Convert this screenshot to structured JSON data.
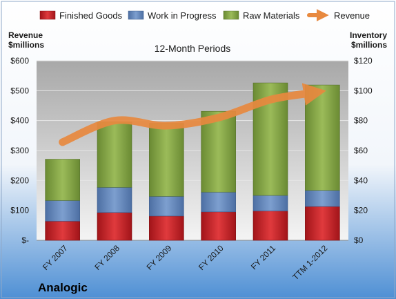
{
  "chart_data": {
    "type": "bar",
    "stacked": true,
    "subtitle": "12-Month Periods",
    "company": "Analogic",
    "categories": [
      "FY 2007",
      "FY 2008",
      "FY 2009",
      "FY 2010",
      "FY 2011",
      "TTM 1-2012"
    ],
    "left_axis": {
      "title_line1": "Revenue",
      "title_line2": "$millions",
      "range": [
        0,
        600
      ],
      "ticks": [
        0,
        100,
        200,
        300,
        400,
        500,
        600
      ],
      "tick_labels": [
        "$-",
        "$100",
        "$200",
        "$300",
        "$400",
        "$500",
        "$600"
      ]
    },
    "right_axis": {
      "title_line1": "Inventory",
      "title_line2": "$millions",
      "range": [
        0,
        120
      ],
      "ticks": [
        0,
        20,
        40,
        60,
        80,
        100,
        120
      ],
      "tick_labels": [
        "$0",
        "$20",
        "$40",
        "$60",
        "$80",
        "$100",
        "$120"
      ]
    },
    "series": [
      {
        "name": "Finished Goods",
        "axis": "right",
        "color": "#c0191f",
        "values": [
          12.8,
          18.6,
          16.2,
          19.0,
          19.6,
          22.6
        ]
      },
      {
        "name": "Work in Progress",
        "axis": "right",
        "color": "#5b7fb5",
        "values": [
          13.8,
          16.8,
          13.2,
          13.2,
          10.4,
          10.8
        ]
      },
      {
        "name": "Raw Materials",
        "axis": "right",
        "color": "#7a9a3d",
        "values": [
          27.6,
          43.6,
          48.8,
          54.0,
          75.2,
          70.4
        ]
      },
      {
        "name": "Revenue",
        "axis": "left",
        "type": "line",
        "color": "#e8893f",
        "values": [
          328,
          400,
          383,
          410,
          470,
          495
        ]
      }
    ],
    "legend": [
      "Finished Goods",
      "Work in Progress",
      "Raw Materials",
      "Revenue"
    ],
    "legend_position": "top",
    "grid": true
  }
}
